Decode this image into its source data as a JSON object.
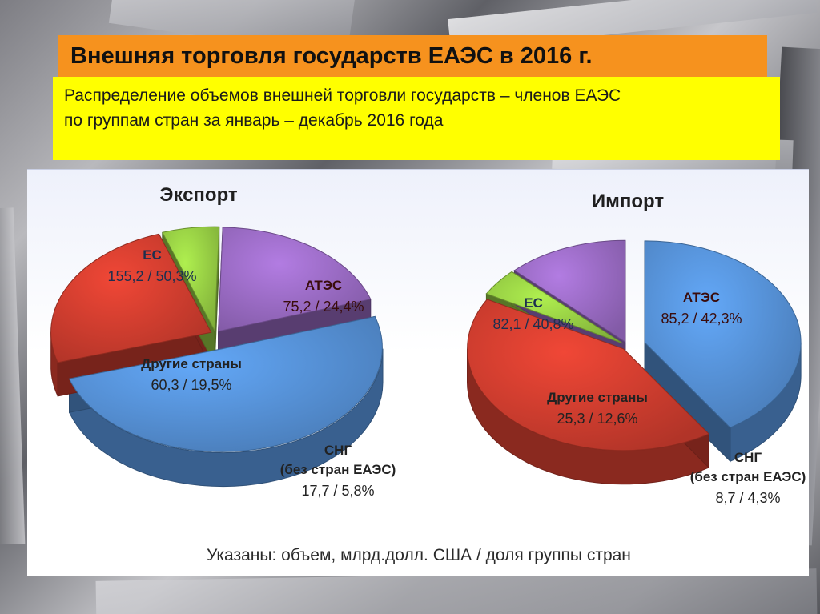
{
  "slide": {
    "title": "Внешняя торговля государств ЕАЭС в 2016 г.",
    "subtitle_line1": "Распределение объемов внешней торговли государств – членов ЕАЭС",
    "subtitle_line2": "по группам стран за январь – декабрь 2016 года",
    "footnote": "Указаны: объем, млрд.долл. США / доля группы стран"
  },
  "colors": {
    "title_bg": "#f6921e",
    "subtitle_bg": "#ffff00",
    "eu": "#4f86c6",
    "apec": "#c0392b",
    "cis": "#8cbf3f",
    "other": "#8e63b5"
  },
  "chart_data": [
    {
      "type": "pie",
      "title": "Экспорт",
      "slices": [
        {
          "key": "eu",
          "label": "ЕС",
          "label2": "",
          "value": 155.2,
          "share": 50.3,
          "value_text": "155,2 / 50,3%"
        },
        {
          "key": "apec",
          "label": "АТЭС",
          "label2": "",
          "value": 75.2,
          "share": 24.4,
          "value_text": "75,2 / 24,4%"
        },
        {
          "key": "cis",
          "label": "СНГ",
          "label2": "(без стран ЕАЭС)",
          "value": 17.7,
          "share": 5.8,
          "value_text": "17,7 / 5,8%"
        },
        {
          "key": "other",
          "label": "Другие страны",
          "label2": "",
          "value": 60.3,
          "share": 19.5,
          "value_text": "60,3 / 19,5%"
        }
      ]
    },
    {
      "type": "pie",
      "title": "Импорт",
      "slices": [
        {
          "key": "eu",
          "label": "ЕС",
          "label2": "",
          "value": 82.1,
          "share": 40.8,
          "value_text": "82,1 / 40,8%"
        },
        {
          "key": "apec",
          "label": "АТЭС",
          "label2": "",
          "value": 85.2,
          "share": 42.3,
          "value_text": "85,2 / 42,3%"
        },
        {
          "key": "cis",
          "label": "СНГ",
          "label2": "(без стран ЕАЭС)",
          "value": 8.7,
          "share": 4.3,
          "value_text": "8,7 / 4,3%"
        },
        {
          "key": "other",
          "label": "Другие страны",
          "label2": "",
          "value": 25.3,
          "share": 12.6,
          "value_text": "25,3 / 12,6%"
        }
      ]
    }
  ]
}
